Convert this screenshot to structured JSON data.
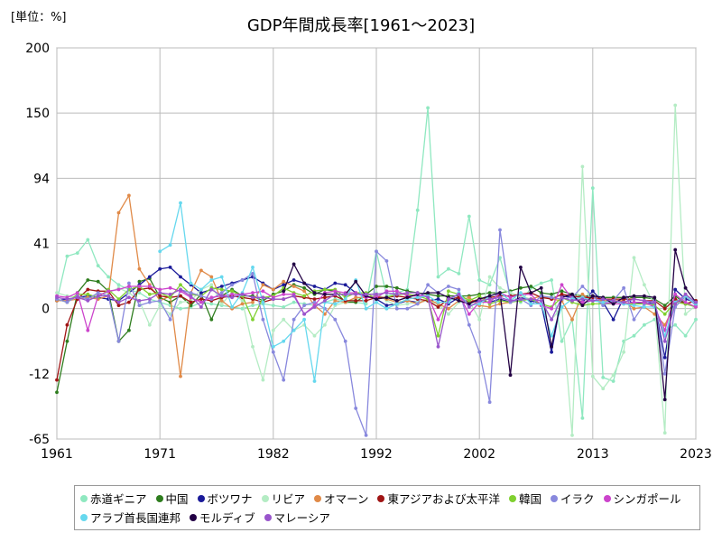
{
  "chart_data": {
    "type": "line",
    "title": "GDP年間成長率[1961～2023]",
    "unit_label": "[単位：%]",
    "xlim": [
      1961,
      2023
    ],
    "ylim": [
      -65,
      200
    ],
    "y_ticks": [
      200,
      150,
      94,
      41,
      0,
      -12,
      -65
    ],
    "x_ticks": [
      1961,
      1971,
      1982,
      1992,
      2002,
      2013,
      2023
    ],
    "grid": true,
    "legend_position": "bottom",
    "series": [
      {
        "name": "赤道ギニア",
        "color": "#8fe8c0",
        "start": 1961,
        "values": [
          5,
          33,
          35,
          44,
          27,
          20,
          15,
          12,
          10,
          6,
          4,
          2,
          0,
          1,
          4,
          3,
          2,
          1,
          0,
          2,
          3,
          2,
          1,
          4,
          3,
          2,
          4,
          6,
          5,
          4,
          3,
          36,
          8,
          10,
          12,
          68,
          154,
          20,
          25,
          22,
          63,
          18,
          15,
          32,
          9,
          4,
          13,
          16,
          18,
          -6,
          -2,
          -48,
          86,
          -15,
          -18,
          -6,
          -5,
          -3,
          -2,
          -4,
          -3,
          -5,
          -2
        ]
      },
      {
        "name": "中国",
        "color": "#2e7d1e",
        "start": 1961,
        "values": [
          -27,
          -6,
          10,
          18,
          17,
          11,
          -6,
          -4,
          17,
          19,
          7,
          4,
          8,
          2,
          9,
          -2,
          8,
          12,
          8,
          8,
          5,
          9,
          11,
          15,
          13,
          9,
          12,
          11,
          4,
          4,
          9,
          14,
          14,
          13,
          11,
          10,
          9,
          8,
          8,
          8,
          8,
          9,
          10,
          10,
          11,
          13,
          14,
          10,
          9,
          11,
          9,
          8,
          8,
          7,
          7,
          7,
          7,
          7,
          6,
          2,
          8,
          3,
          5
        ]
      },
      {
        "name": "ボツワナ",
        "color": "#1a1a99",
        "start": 1961,
        "values": [
          5,
          6,
          7,
          8,
          7,
          6,
          5,
          10,
          15,
          20,
          25,
          26,
          20,
          15,
          10,
          12,
          14,
          16,
          18,
          20,
          16,
          12,
          15,
          18,
          16,
          14,
          12,
          16,
          15,
          10,
          8,
          6,
          2,
          3,
          5,
          4,
          5,
          6,
          3,
          7,
          4,
          5,
          4,
          6,
          4,
          7,
          5,
          3,
          -8,
          8,
          7,
          4,
          11,
          4,
          -2,
          7,
          3,
          4,
          3,
          -9,
          12,
          6,
          4
        ]
      },
      {
        "name": "リビア",
        "color": "#b4ecc4",
        "start": 1961,
        "values": [
          10,
          8,
          7,
          6,
          9,
          10,
          13,
          10,
          5,
          -3,
          2,
          -1,
          4,
          5,
          12,
          15,
          3,
          10,
          5,
          -7,
          -17,
          -4,
          -2,
          -4,
          -3,
          -5,
          -3,
          2,
          4,
          6,
          8,
          10,
          5,
          2,
          3,
          4,
          5,
          3,
          -1,
          4,
          5,
          -2,
          20,
          13,
          10,
          8,
          6,
          3,
          -2,
          1,
          -62,
          104,
          -14,
          -24,
          -13,
          -8,
          32,
          15,
          2,
          -60,
          156,
          -1,
          2
        ]
      },
      {
        "name": "オマーン",
        "color": "#e08a48",
        "start": 1961,
        "values": [
          5,
          5,
          6,
          7,
          6,
          8,
          66,
          80,
          25,
          15,
          5,
          8,
          -14,
          10,
          24,
          20,
          5,
          0,
          3,
          4,
          15,
          12,
          17,
          14,
          11,
          2,
          -1,
          5,
          4,
          7,
          7,
          8,
          6,
          4,
          5,
          3,
          6,
          3,
          0,
          5,
          7,
          2,
          1,
          3,
          4,
          6,
          6,
          8,
          6,
          5,
          -2,
          9,
          5,
          5,
          5,
          5,
          0,
          1,
          -1,
          -3,
          3,
          9,
          2
        ]
      },
      {
        "name": "東アジアおよび太平洋",
        "color": "#a01515",
        "start": 1961,
        "values": [
          -17,
          -3,
          6,
          12,
          11,
          11,
          2,
          4,
          12,
          13,
          8,
          7,
          8,
          4,
          6,
          5,
          7,
          8,
          7,
          6,
          4,
          6,
          6,
          8,
          7,
          6,
          7,
          8,
          5,
          5,
          5,
          7,
          7,
          8,
          7,
          6,
          5,
          1,
          6,
          7,
          4,
          6,
          7,
          8,
          8,
          9,
          10,
          7,
          6,
          9,
          8,
          7,
          7,
          6,
          6,
          6,
          6,
          5,
          5,
          0,
          6,
          3,
          5
        ]
      },
      {
        "name": "韓国",
        "color": "#80d030",
        "start": 1961,
        "values": [
          6,
          4,
          9,
          9,
          7,
          12,
          6,
          12,
          14,
          9,
          10,
          7,
          15,
          9,
          8,
          13,
          12,
          11,
          8,
          -2,
          7,
          8,
          13,
          10,
          8,
          11,
          12,
          12,
          7,
          10,
          10,
          6,
          7,
          9,
          9,
          8,
          6,
          -5,
          11,
          9,
          5,
          8,
          3,
          5,
          4,
          5,
          6,
          3,
          1,
          7,
          4,
          2,
          3,
          3,
          3,
          3,
          3,
          3,
          2,
          -1,
          4,
          3,
          1
        ]
      },
      {
        "name": "イラク",
        "color": "#8888dd",
        "start": 1961,
        "values": [
          6,
          4,
          8,
          6,
          10,
          8,
          -6,
          16,
          2,
          4,
          5,
          -2,
          12,
          10,
          8,
          6,
          10,
          15,
          18,
          22,
          -2,
          -8,
          -17,
          -2,
          2,
          4,
          0,
          -2,
          -6,
          -40,
          -62,
          36,
          30,
          0,
          0,
          3,
          15,
          10,
          14,
          12,
          -3,
          -8,
          -35,
          52,
          4,
          6,
          2,
          8,
          7,
          6,
          7,
          14,
          8,
          2,
          5,
          13,
          -2,
          3,
          5,
          -12,
          1,
          8,
          2
        ]
      },
      {
        "name": "シンガポール",
        "color": "#cc44cc",
        "start": 1961,
        "values": [
          8,
          7,
          10,
          -4,
          8,
          11,
          12,
          14,
          14,
          14,
          12,
          13,
          11,
          7,
          4,
          7,
          8,
          9,
          9,
          10,
          11,
          7,
          9,
          9,
          -1,
          2,
          10,
          11,
          10,
          10,
          7,
          7,
          11,
          11,
          8,
          8,
          8,
          -2,
          6,
          9,
          -1,
          4,
          4,
          10,
          7,
          9,
          9,
          2,
          0,
          15,
          6,
          4,
          5,
          4,
          3,
          3,
          4,
          4,
          1,
          -4,
          9,
          4,
          1
        ]
      },
      {
        "name": "アラブ首長国連邦",
        "color": "#66d8ee",
        "start": 1961,
        "values": [
          null,
          null,
          null,
          null,
          null,
          null,
          null,
          null,
          null,
          null,
          36,
          40,
          74,
          16,
          12,
          18,
          20,
          1,
          10,
          26,
          4,
          -7,
          -6,
          -4,
          -2,
          -18,
          4,
          3,
          6,
          18,
          0,
          4,
          0,
          3,
          6,
          7,
          8,
          4,
          4,
          10,
          2,
          3,
          8,
          10,
          5,
          10,
          3,
          3,
          -5,
          1,
          6,
          7,
          5,
          4,
          5,
          3,
          2,
          1,
          1,
          -5,
          4,
          8,
          3
        ]
      },
      {
        "name": "モルディブ",
        "color": "#220044",
        "start": 1961,
        "values": [
          null,
          null,
          null,
          null,
          null,
          null,
          null,
          null,
          null,
          null,
          null,
          null,
          null,
          null,
          null,
          null,
          null,
          null,
          null,
          null,
          null,
          null,
          11,
          28,
          16,
          10,
          9,
          9,
          9,
          17,
          8,
          6,
          7,
          5,
          7,
          9,
          10,
          10,
          7,
          5,
          3,
          6,
          8,
          10,
          -13,
          26,
          10,
          13,
          -7,
          7,
          9,
          2,
          8,
          7,
          3,
          7,
          8,
          8,
          7,
          -33,
          37,
          13,
          4
        ]
      },
      {
        "name": "マレーシア",
        "color": "#9955cc",
        "start": 1961,
        "values": [
          7,
          6,
          7,
          5,
          8,
          8,
          4,
          7,
          5,
          6,
          10,
          9,
          12,
          8,
          1,
          12,
          8,
          7,
          9,
          7,
          7,
          6,
          6,
          8,
          -1,
          1,
          5,
          9,
          9,
          9,
          9,
          9,
          10,
          9,
          10,
          10,
          7,
          -7,
          6,
          9,
          1,
          5,
          6,
          7,
          5,
          6,
          6,
          5,
          -2,
          7,
          5,
          6,
          5,
          6,
          5,
          4,
          6,
          5,
          4,
          -6,
          3,
          9,
          4
        ]
      }
    ]
  }
}
